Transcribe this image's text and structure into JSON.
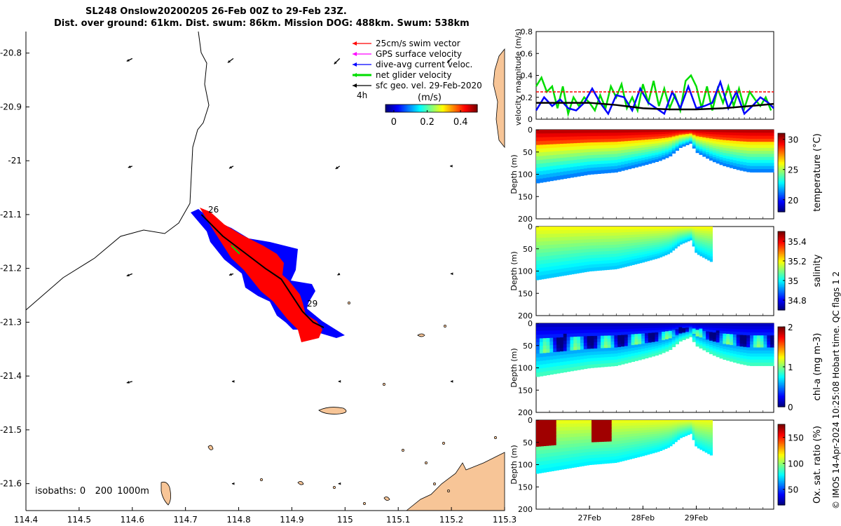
{
  "title": {
    "line1": "SL248 Onslow20200205 26-Feb 00Z to 29-Feb 23Z.",
    "line2": "Dist. over ground: 61km. Dist. swum: 86km. Mission DOG: 488km. Swum: 538km"
  },
  "credit": "© IMOS 14-Apr-2024 10:25:08 Hobart time. QC flags 1  2",
  "colors": {
    "swim_vector": "#ff0000",
    "gps_velocity": "#ff00ff",
    "dive_current": "#0000ff",
    "net_glider": "#00dd00",
    "sfc_geo": "#000000",
    "land": "#f7c597",
    "track_fill_red": "#ff0000",
    "track_fill_blue": "#0000ff"
  },
  "map": {
    "legend": [
      {
        "label": "25cm/s swim vector",
        "color": "#ff0000"
      },
      {
        "label": "GPS surface velocity",
        "color": "#ff00ff"
      },
      {
        "label": "dive-avg current veloc.",
        "color": "#0000ff"
      },
      {
        "label": "net glider velocity",
        "color": "#00dd00"
      },
      {
        "label": "sfc geo. vel. 29-Feb-2020",
        "color": "#000000"
      }
    ],
    "scale_label": "4h",
    "colorbar_label": "(m/s)",
    "colorbar_ticks": [
      "0",
      "0.2",
      "0.4"
    ],
    "colorbar_range": [
      -0.05,
      0.5
    ],
    "isobaths_label": "isobaths:",
    "isobaths_values": [
      "0",
      "200",
      "1000m"
    ],
    "start_label": "26",
    "end_label": "29"
  },
  "chart_data": [
    {
      "type": "scatter",
      "title": "",
      "xlabel": "",
      "ylabel": "",
      "xlim": [
        114.4,
        115.3
      ],
      "ylim": [
        -21.65,
        -20.76
      ],
      "xticks": [
        "114.4",
        "114.5",
        "114.6",
        "114.7",
        "114.8",
        "114.9",
        "115",
        "115.1",
        "115.2",
        "115.3"
      ],
      "yticks": [
        "-20.8",
        "-20.9",
        "-21",
        "-21.1",
        "-21.2",
        "-21.3",
        "-21.4",
        "-21.5",
        "-21.6"
      ],
      "glider_track": {
        "lon": [
          114.73,
          114.77,
          114.81,
          114.85,
          114.88,
          114.9,
          114.92,
          114.94,
          114.96
        ],
        "lat": [
          -21.1,
          -21.14,
          -21.17,
          -21.2,
          -21.22,
          -21.25,
          -21.28,
          -21.3,
          -21.31
        ]
      },
      "sfc_geo_vectors": [
        {
          "lon": 114.6,
          "lat": -20.81,
          "u": -0.2,
          "v": -0.1
        },
        {
          "lon": 114.79,
          "lat": -20.81,
          "u": -0.2,
          "v": -0.15
        },
        {
          "lon": 114.99,
          "lat": -20.81,
          "u": -0.2,
          "v": -0.2
        },
        {
          "lon": 115.2,
          "lat": -20.81,
          "u": -0.15,
          "v": -0.15
        },
        {
          "lon": 114.6,
          "lat": -21.01,
          "u": -0.15,
          "v": -0.05
        },
        {
          "lon": 114.79,
          "lat": -21.01,
          "u": -0.15,
          "v": -0.08
        },
        {
          "lon": 114.99,
          "lat": -21.01,
          "u": -0.15,
          "v": -0.1
        },
        {
          "lon": 115.2,
          "lat": -21.01,
          "u": -0.05,
          "v": 0
        },
        {
          "lon": 114.6,
          "lat": -21.21,
          "u": -0.2,
          "v": -0.08
        },
        {
          "lon": 114.79,
          "lat": -21.21,
          "u": -0.15,
          "v": -0.05
        },
        {
          "lon": 114.99,
          "lat": -21.21,
          "u": -0.08,
          "v": -0.05
        },
        {
          "lon": 115.2,
          "lat": -21.21,
          "u": -0.03,
          "v": 0
        },
        {
          "lon": 114.6,
          "lat": -21.41,
          "u": -0.2,
          "v": -0.05
        },
        {
          "lon": 114.79,
          "lat": -21.41,
          "u": -0.05,
          "v": 0
        },
        {
          "lon": 114.99,
          "lat": -21.41,
          "u": -0.05,
          "v": 0
        },
        {
          "lon": 115.2,
          "lat": -21.41,
          "u": -0.03,
          "v": 0
        },
        {
          "lon": 114.79,
          "lat": -21.6,
          "u": -0.05,
          "v": 0
        },
        {
          "lon": 114.99,
          "lat": -21.6,
          "u": -0.05,
          "v": 0
        }
      ]
    },
    {
      "type": "line",
      "ylabel": "velocity magnitude (m/s)",
      "ylim": [
        0,
        0.8
      ],
      "yticks": [
        "0",
        "0.2",
        "0.4",
        "0.6",
        "0.8"
      ],
      "xlim_days": [
        26,
        30.45
      ],
      "series": [
        {
          "color": "#00dd00",
          "x": [
            26,
            26.1,
            26.2,
            26.3,
            26.4,
            26.5,
            26.6,
            26.7,
            26.8,
            26.9,
            27,
            27.1,
            27.2,
            27.3,
            27.4,
            27.5,
            27.6,
            27.7,
            27.8,
            27.9,
            28,
            28.1,
            28.2,
            28.3,
            28.4,
            28.5,
            28.6,
            28.7,
            28.8,
            28.9,
            29,
            29.1,
            29.2,
            29.3,
            29.4,
            29.5,
            29.6,
            29.7,
            29.8,
            29.9,
            30,
            30.1,
            30.2,
            30.3,
            30.4
          ],
          "values": [
            0.3,
            0.38,
            0.25,
            0.3,
            0.1,
            0.3,
            0.05,
            0.2,
            0.12,
            0.2,
            0.15,
            0.08,
            0.22,
            0.1,
            0.3,
            0.2,
            0.32,
            0.1,
            0.2,
            0.08,
            0.32,
            0.15,
            0.35,
            0.12,
            0.28,
            0.1,
            0.22,
            0.08,
            0.35,
            0.4,
            0.3,
            0.1,
            0.3,
            0.08,
            0.28,
            0.15,
            0.3,
            0.12,
            0.28,
            0.1,
            0.25,
            0.18,
            0.12,
            0.2,
            0.08
          ]
        },
        {
          "color": "#0000ff",
          "x": [
            26,
            26.15,
            26.3,
            26.45,
            26.6,
            26.75,
            26.9,
            27.05,
            27.2,
            27.35,
            27.5,
            27.65,
            27.8,
            27.95,
            28.1,
            28.25,
            28.4,
            28.55,
            28.7,
            28.85,
            29,
            29.15,
            29.3,
            29.45,
            29.6,
            29.75,
            29.9,
            30.05,
            30.2,
            30.35,
            30.45
          ],
          "values": [
            0.08,
            0.2,
            0.12,
            0.18,
            0.1,
            0.08,
            0.15,
            0.28,
            0.15,
            0.05,
            0.22,
            0.2,
            0.08,
            0.28,
            0.15,
            0.1,
            0.05,
            0.25,
            0.1,
            0.3,
            0.1,
            0.12,
            0.15,
            0.34,
            0.1,
            0.25,
            0.05,
            0.12,
            0.2,
            0.15,
            0.1
          ]
        },
        {
          "color": "#000000",
          "x": [
            26,
            26.5,
            27,
            27.5,
            28,
            28.5,
            29,
            29.5,
            30,
            30.45
          ],
          "values": [
            0.15,
            0.15,
            0.15,
            0.13,
            0.1,
            0.09,
            0.09,
            0.1,
            0.12,
            0.14
          ]
        },
        {
          "color": "#ff0000",
          "dashed": true,
          "x": [
            26,
            30.45
          ],
          "values": [
            0.25,
            0.25
          ]
        }
      ]
    },
    {
      "type": "heatmap",
      "ylabel": "Depth (m)",
      "colorbar_label": "temperature (°C)",
      "colorbar_ticks": [
        "20",
        "25",
        "30"
      ],
      "crange": [
        18,
        31
      ],
      "ylim": [
        200,
        0
      ],
      "yticks": [
        "0",
        "50",
        "100",
        "150",
        "200"
      ],
      "bottom_depth": {
        "x": [
          26,
          26.5,
          27,
          27.5,
          28,
          28.3,
          28.5,
          28.7,
          28.9,
          29,
          29.3,
          29.5,
          29.8,
          30,
          30.45
        ],
        "depth": [
          120,
          110,
          100,
          95,
          80,
          70,
          60,
          40,
          30,
          50,
          70,
          80,
          90,
          95,
          95
        ]
      },
      "surface_value": 29,
      "deep_value": 21
    },
    {
      "type": "heatmap",
      "ylabel": "Depth (m)",
      "colorbar_label": "salinity",
      "colorbar_ticks": [
        "34.8",
        "35",
        "35.2",
        "35.4"
      ],
      "crange": [
        34.7,
        35.5
      ],
      "ylim": [
        200,
        0
      ],
      "yticks": [
        "0",
        "50",
        "100",
        "150",
        "200"
      ],
      "bottom_depth": {
        "x": [
          26,
          26.5,
          27,
          27.5,
          28,
          28.3,
          28.5,
          28.7,
          28.9,
          29,
          29.3
        ],
        "depth": [
          120,
          110,
          100,
          95,
          80,
          70,
          60,
          40,
          30,
          60,
          80
        ]
      },
      "surface_value": 35.2,
      "deep_value": 34.95
    },
    {
      "type": "heatmap",
      "ylabel": "Depth (m)",
      "colorbar_label": "chl-a (mg m-3)",
      "colorbar_ticks": [
        "0",
        "1",
        "2"
      ],
      "crange": [
        0,
        2
      ],
      "ylim": [
        200,
        0
      ],
      "yticks": [
        "0",
        "50",
        "100",
        "150",
        "200"
      ],
      "bottom_depth": {
        "x": [
          26,
          26.5,
          27,
          27.5,
          28,
          28.3,
          28.5,
          28.7,
          28.9,
          29,
          29.3,
          29.5,
          29.8,
          30,
          30.45
        ],
        "depth": [
          120,
          110,
          100,
          95,
          80,
          70,
          60,
          40,
          30,
          50,
          70,
          80,
          90,
          95,
          95
        ]
      },
      "surface_value": 0.1,
      "deep_value": 0.9
    },
    {
      "type": "heatmap",
      "ylabel": "Depth (m)",
      "colorbar_label": "Ox. sat. ratio (%)",
      "colorbar_ticks": [
        "50",
        "100",
        "150"
      ],
      "crange": [
        20,
        175
      ],
      "ylim": [
        200,
        0
      ],
      "yticks": [
        "0",
        "50",
        "100",
        "150",
        "200"
      ],
      "xticks": [
        "27Feb",
        "28Feb",
        "29Feb"
      ],
      "bottom_depth": {
        "x": [
          26,
          26.5,
          27,
          27.5,
          28,
          28.3,
          28.5,
          28.7,
          28.9,
          29,
          29.3
        ],
        "depth": [
          120,
          110,
          100,
          95,
          80,
          70,
          60,
          40,
          30,
          60,
          80
        ]
      },
      "surface_value": 115,
      "deep_value": 75
    }
  ]
}
